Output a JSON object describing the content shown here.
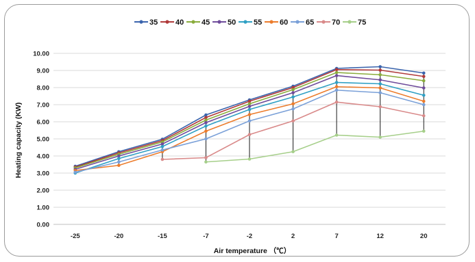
{
  "chart_data": {
    "type": "line",
    "title": "",
    "xlabel": "Air temperature （℃）",
    "ylabel": "Heating capacity (KW)",
    "categories": [
      "-25",
      "-20",
      "-15",
      "-7",
      "-2",
      "2",
      "7",
      "12",
      "20"
    ],
    "ylim": [
      0,
      10
    ],
    "yticks": [
      "0.00",
      "1.00",
      "2.00",
      "3.00",
      "4.00",
      "5.00",
      "6.00",
      "7.00",
      "8.00",
      "9.00",
      "10.00"
    ],
    "grid": true,
    "legend_position": "top",
    "drop_lines": true,
    "series": [
      {
        "name": "35",
        "color": "#3a64ad",
        "values": [
          3.4,
          4.25,
          4.98,
          6.4,
          7.28,
          8.08,
          9.12,
          9.22,
          8.85
        ]
      },
      {
        "name": "40",
        "color": "#b03a3a",
        "values": [
          3.35,
          4.18,
          4.9,
          6.25,
          7.2,
          8.0,
          9.05,
          9.02,
          8.65
        ]
      },
      {
        "name": "45",
        "color": "#8aac3c",
        "values": [
          3.3,
          4.1,
          4.82,
          6.1,
          7.05,
          7.88,
          8.88,
          8.75,
          8.4
        ]
      },
      {
        "name": "50",
        "color": "#6f4c9b",
        "values": [
          3.22,
          4.0,
          4.7,
          5.95,
          6.9,
          7.7,
          8.7,
          8.45,
          7.98
        ]
      },
      {
        "name": "55",
        "color": "#2fa0c4",
        "values": [
          3.0,
          3.85,
          4.55,
          5.75,
          6.72,
          7.45,
          8.3,
          8.22,
          7.55
        ]
      },
      {
        "name": "60",
        "color": "#ec7c2c",
        "values": [
          3.15,
          3.45,
          4.25,
          5.45,
          6.42,
          7.05,
          8.05,
          7.98,
          7.2
        ]
      },
      {
        "name": "65",
        "color": "#7aa0d8",
        "values": [
          3.05,
          3.65,
          4.35,
          5.0,
          6.05,
          6.75,
          7.85,
          7.7,
          7.0
        ]
      },
      {
        "name": "70",
        "color": "#d98a8a",
        "values": [
          null,
          null,
          3.8,
          3.9,
          5.25,
          6.05,
          7.15,
          6.88,
          6.35
        ]
      },
      {
        "name": "75",
        "color": "#a6cf8a",
        "values": [
          null,
          null,
          null,
          3.65,
          3.82,
          4.25,
          5.22,
          5.1,
          5.45
        ]
      }
    ]
  }
}
